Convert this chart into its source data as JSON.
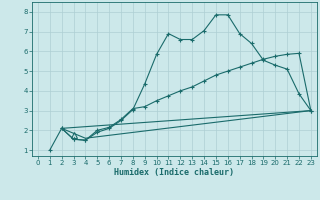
{
  "xlabel": "Humidex (Indice chaleur)",
  "bg_color": "#cce8ea",
  "grid_color": "#aecfd4",
  "line_color": "#1a6b6b",
  "xlim": [
    -0.5,
    23.5
  ],
  "ylim": [
    0.7,
    8.5
  ],
  "xticks": [
    0,
    1,
    2,
    3,
    4,
    5,
    6,
    7,
    8,
    9,
    10,
    11,
    12,
    13,
    14,
    15,
    16,
    17,
    18,
    19,
    20,
    21,
    22,
    23
  ],
  "yticks": [
    1,
    2,
    3,
    4,
    5,
    6,
    7,
    8
  ],
  "line1_x": [
    1,
    2,
    3,
    4,
    5,
    6,
    7,
    8,
    9,
    10,
    11,
    12,
    13,
    14,
    15,
    16,
    17,
    18,
    19,
    20,
    21,
    22,
    23
  ],
  "line1_y": [
    1.0,
    2.1,
    1.55,
    1.5,
    1.9,
    2.1,
    2.5,
    3.05,
    4.35,
    5.85,
    6.9,
    6.6,
    6.6,
    7.05,
    7.85,
    7.85,
    6.9,
    6.4,
    5.55,
    5.3,
    5.1,
    3.85,
    3.0
  ],
  "line2_x": [
    2,
    3,
    4,
    5,
    6,
    7,
    8,
    9,
    10,
    11,
    12,
    13,
    14,
    15,
    16,
    17,
    18,
    19,
    20,
    21,
    22,
    23
  ],
  "line2_y": [
    2.1,
    1.55,
    1.5,
    2.0,
    2.15,
    2.55,
    3.1,
    3.2,
    3.5,
    3.75,
    4.0,
    4.2,
    4.5,
    4.8,
    5.0,
    5.2,
    5.4,
    5.6,
    5.75,
    5.85,
    5.9,
    3.0
  ],
  "line3_x": [
    2,
    23
  ],
  "line3_y": [
    2.1,
    3.0
  ],
  "line4_x": [
    2,
    4,
    23
  ],
  "line4_y": [
    2.1,
    1.6,
    3.0
  ],
  "triangle_x": [
    3
  ],
  "triangle_y": [
    1.75
  ]
}
